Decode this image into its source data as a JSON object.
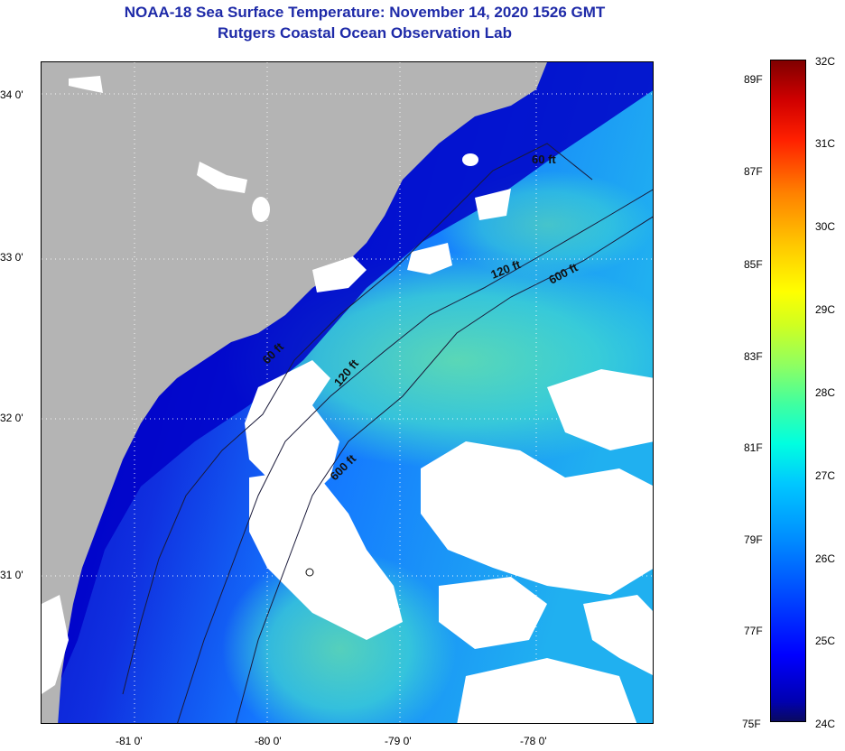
{
  "title": "NOAA-18 Sea Surface Temperature:  November 14, 2020 1526 GMT",
  "subtitle": "Rutgers Coastal Ocean Observation Lab",
  "map": {
    "lat_labels": [
      "34 0'",
      "33 0'",
      "32 0'",
      "31 0'"
    ],
    "lon_labels": [
      "-81 0'",
      "-80 0'",
      "-79 0'",
      "-78 0'"
    ],
    "contours": [
      {
        "label": "60 ft"
      },
      {
        "label": "120 ft"
      },
      {
        "label": "600 ft"
      },
      {
        "label": "60 ft"
      },
      {
        "label": "120 ft"
      },
      {
        "label": "600 ft"
      }
    ],
    "colors": {
      "land": "#b4b4b4",
      "cloud": "#ffffff",
      "cold": "#0000c8",
      "warm": "#60e8c0"
    }
  },
  "colorbar": {
    "fahrenheit_labels": [
      "89F",
      "87F",
      "85F",
      "83F",
      "81F",
      "79F",
      "77F",
      "75F"
    ],
    "celsius_labels": [
      "32C",
      "31C",
      "30C",
      "29C",
      "28C",
      "27C",
      "26C",
      "25C",
      "24C"
    ]
  }
}
